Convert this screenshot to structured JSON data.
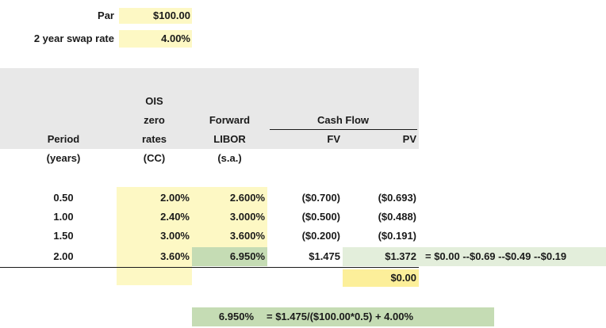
{
  "inputs": {
    "par_label": "Par",
    "par_value": "$100.00",
    "swap_label": "2 year swap rate",
    "swap_value": "4.00%"
  },
  "headers": {
    "ois_1": "OIS",
    "ois_2": "zero",
    "ois_3": "rates",
    "forward_1": "Forward",
    "forward_2": "LIBOR",
    "cashflow": "Cash Flow",
    "period": "Period",
    "fv": "FV",
    "pv": "PV",
    "period_unit": "(years)",
    "ois_unit": "(CC)",
    "forward_unit": "(s.a.)"
  },
  "rows": [
    {
      "period": "0.50",
      "ois": "2.00%",
      "forward": "2.600%",
      "fv": "($0.700)",
      "pv": "($0.693)"
    },
    {
      "period": "1.00",
      "ois": "2.40%",
      "forward": "3.000%",
      "fv": "($0.500)",
      "pv": "($0.488)"
    },
    {
      "period": "1.50",
      "ois": "3.00%",
      "forward": "3.600%",
      "fv": "($0.200)",
      "pv": "($0.191)"
    },
    {
      "period": "2.00",
      "ois": "3.60%",
      "forward": "6.950%",
      "fv": "$1.475",
      "pv": "$1.372"
    }
  ],
  "pv_formula": "= $0.00 --$0.69 --$0.49 --$0.19",
  "pv_total": "$0.00",
  "bottom": {
    "value": "6.950%",
    "formula": "= $1.475/($100.00*0.5) + 4.00%"
  }
}
